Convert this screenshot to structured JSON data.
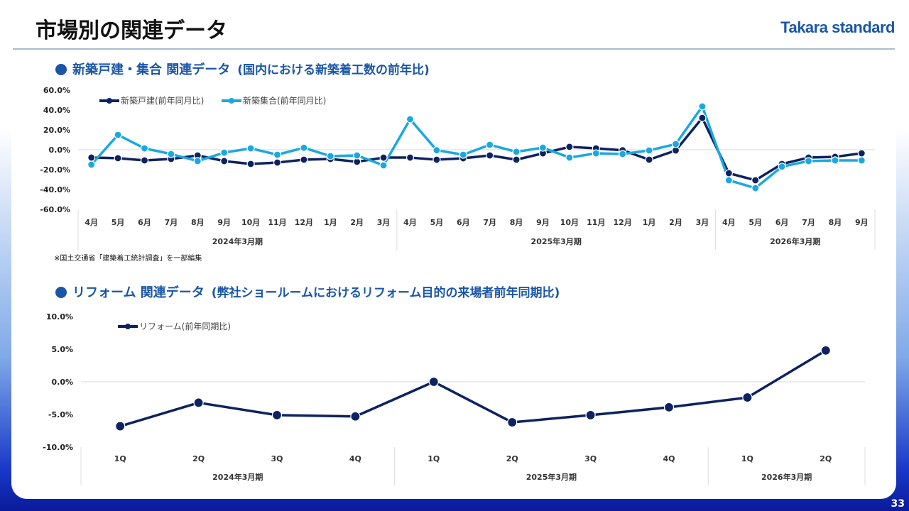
{
  "header": {
    "title": "市場別の関連データ",
    "logo": "Takara standard",
    "page": "33"
  },
  "section1": {
    "title": "新築戸建・集合 関連データ",
    "subtitle": "(国内における新築着工数の前年比)",
    "note": "※国土交通省「建築着工統計調査」を一部編集"
  },
  "section2": {
    "title": "リフォーム 関連データ",
    "subtitle": "(弊社ショールームにおけるリフォーム目的の来場者前年同期比)"
  },
  "chart_data": [
    {
      "type": "line",
      "ylim": [
        -60,
        60
      ],
      "yticks": [
        "60.0%",
        "40.0%",
        "20.0%",
        "0.0%",
        "-20.0%",
        "-40.0%",
        "-60.0%"
      ],
      "ytick_values": [
        60,
        40,
        20,
        0,
        -20,
        -40,
        -60
      ],
      "categories": [
        "4月",
        "5月",
        "6月",
        "7月",
        "8月",
        "9月",
        "10月",
        "11月",
        "12月",
        "1月",
        "2月",
        "3月",
        "4月",
        "5月",
        "6月",
        "7月",
        "8月",
        "9月",
        "10月",
        "11月",
        "12月",
        "1月",
        "2月",
        "3月",
        "4月",
        "5月",
        "6月",
        "7月",
        "8月",
        "9月"
      ],
      "groups": [
        {
          "label": "2024年3月期",
          "count": 12
        },
        {
          "label": "2025年3月期",
          "count": 12
        },
        {
          "label": "2026年3月期",
          "count": 6
        }
      ],
      "legend": "top-left",
      "series": [
        {
          "name": "新築戸建(前年同月比)",
          "color": "#0d2260",
          "values": [
            -7.9,
            -8.5,
            -10.7,
            -9.3,
            -5.7,
            -11.4,
            -14.3,
            -12.9,
            -10,
            -9.3,
            -12.1,
            -7.9,
            -7.9,
            -10,
            -8.6,
            -5.7,
            -10,
            -3.6,
            2.9,
            1.4,
            -0.5,
            -10,
            -0.7,
            32,
            -23.6,
            -30.7,
            -14.3,
            -7.9,
            -7.1,
            -3.6
          ]
        },
        {
          "name": "新築集合(前年同月比)",
          "color": "#1aa8e0",
          "values": [
            -15,
            15,
            1.4,
            -4.3,
            -11.4,
            -2.9,
            1.4,
            -5,
            2,
            -6.4,
            -5.7,
            -15.7,
            30.7,
            -0.5,
            -5,
            5,
            -2.1,
            2.1,
            -7.9,
            -3.6,
            -4.3,
            -0.7,
            5.7,
            43.6,
            -30.7,
            -38.6,
            -17,
            -11.4,
            -10.7,
            -10.7
          ]
        }
      ]
    },
    {
      "type": "line",
      "ylim": [
        -10,
        10
      ],
      "yticks": [
        "10.0%",
        "5.0%",
        "0.0%",
        "-5.0%",
        "-10.0%"
      ],
      "ytick_values": [
        10,
        5,
        0,
        -5,
        -10
      ],
      "categories": [
        "1Q",
        "2Q",
        "3Q",
        "4Q",
        "1Q",
        "2Q",
        "3Q",
        "4Q",
        "1Q",
        "2Q"
      ],
      "groups": [
        {
          "label": "2024年3月期",
          "count": 4
        },
        {
          "label": "2025年3月期",
          "count": 4
        },
        {
          "label": "2026年3月期",
          "count": 2
        }
      ],
      "legend": "top-left",
      "series": [
        {
          "name": "リフォーム(前年同期比)",
          "color": "#0d2260",
          "values": [
            -6.8,
            -3.2,
            -5.1,
            -5.3,
            0,
            -6.2,
            -5.1,
            -3.9,
            -2.4,
            4.8
          ]
        }
      ]
    }
  ]
}
